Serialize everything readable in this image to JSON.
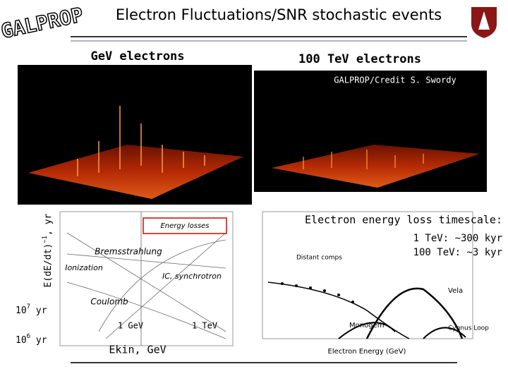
{
  "header": {
    "logo": "GALPROP",
    "title": "Electron Fluctuations/SNR stochastic events"
  },
  "panels": {
    "left_title": "GeV electrons",
    "right_title": "100 TeV electrons",
    "credit": "GALPROP/Credit S. Swordy"
  },
  "loss_plot": {
    "y_label": "E(dE/dt)",
    "y_label_exp": "−1",
    "y_label_unit": ", yr",
    "tick_7": {
      "base": "10",
      "exp": "7",
      "unit": " yr"
    },
    "tick_6": {
      "base": "10",
      "exp": "6",
      "unit": " yr"
    },
    "energy_losses": "Energy losses",
    "bremsstrahlung": "Bremsstrahlung",
    "ionization": "Ionization",
    "ic": "IC, synchrotron",
    "coulomb": "Coulomb",
    "gev": "1 GeV",
    "tev": "1 TeV",
    "x_label": "Ekin, GeV"
  },
  "spectrum_plot": {
    "vela": "Vela",
    "monogem": "Monogem",
    "cygnus": "Cygnus Loop",
    "x_label": "Electron Energy (GeV)",
    "distant": "Distant comps"
  },
  "notes": {
    "line1": "Electron energy loss timescale:",
    "line2": "1 TeV: ~300 kyr",
    "line3": "100 TeV: ~3 kyr"
  }
}
